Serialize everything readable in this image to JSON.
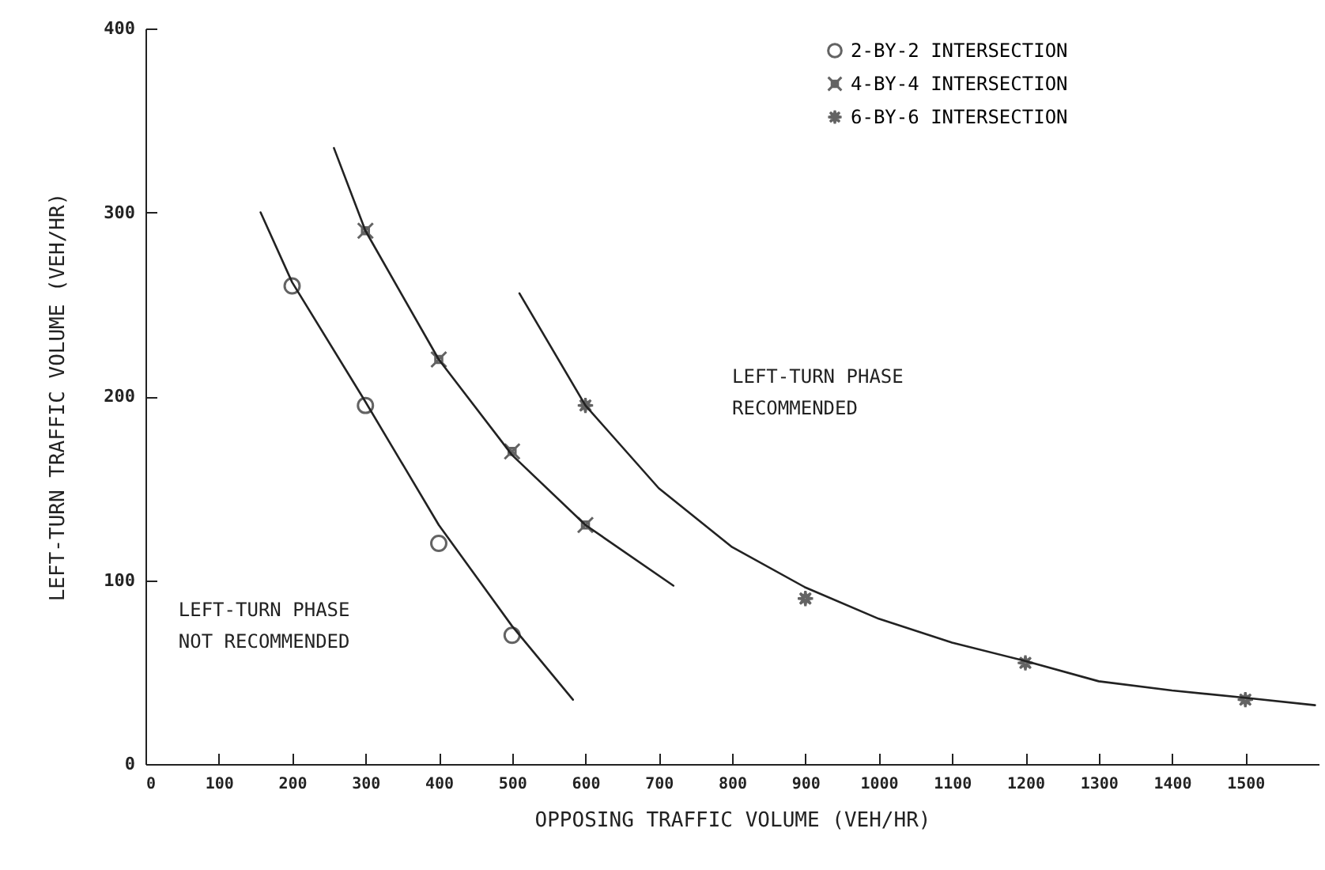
{
  "chart_data": {
    "type": "scatter",
    "xlabel": "OPPOSING TRAFFIC VOLUME (VEH/HR)",
    "ylabel": "LEFT-TURN TRAFFIC VOLUME (VEH/HR)",
    "series": [
      {
        "name": "2-BY-2 INTERSECTION",
        "marker": "circle",
        "color": "#222222",
        "x": [
          200,
          300,
          400,
          500
        ],
        "values": [
          260,
          195,
          120,
          70
        ]
      },
      {
        "name": "4-BY-4 INTERSECTION",
        "marker": "cross",
        "color": "#222222",
        "x": [
          300,
          400,
          500,
          600
        ],
        "values": [
          290,
          220,
          170,
          130
        ]
      },
      {
        "name": "6-BY-6 INTERSECTION",
        "marker": "star",
        "color": "#222222",
        "x": [
          600,
          900,
          1200,
          1500
        ],
        "values": [
          195,
          90,
          55,
          35
        ]
      },
      {
        "type": "line",
        "color": "#222222",
        "x": [
          157,
          200,
          300,
          400,
          500,
          583
        ],
        "values": [
          300,
          262,
          197,
          130,
          75,
          35
        ]
      },
      {
        "type": "line",
        "color": "#222222",
        "x": [
          257,
          300,
          400,
          500,
          600,
          720
        ],
        "values": [
          335,
          290,
          220,
          168,
          130,
          97
        ]
      },
      {
        "type": "line",
        "color": "#222222",
        "x": [
          510,
          600,
          700,
          800,
          900,
          1000,
          1100,
          1200,
          1300,
          1400,
          1500,
          1595
        ],
        "values": [
          256,
          195,
          150,
          118,
          96,
          79,
          66,
          56,
          45,
          40,
          36,
          32
        ]
      }
    ],
    "xlim": [
      0,
      1600
    ],
    "xticks": [
      0,
      100,
      200,
      300,
      400,
      500,
      600,
      700,
      800,
      900,
      1000,
      1100,
      1200,
      1300,
      1400,
      1500
    ],
    "ylim": [
      0,
      400
    ],
    "yticks": [
      0,
      100,
      200,
      300,
      400
    ],
    "grid": false,
    "legend": "top right",
    "annotations": [
      "LEFT-TURN PHASE\nRECOMMENDED",
      "LEFT-TURN PHASE\nNOT RECOMMENDED"
    ]
  }
}
